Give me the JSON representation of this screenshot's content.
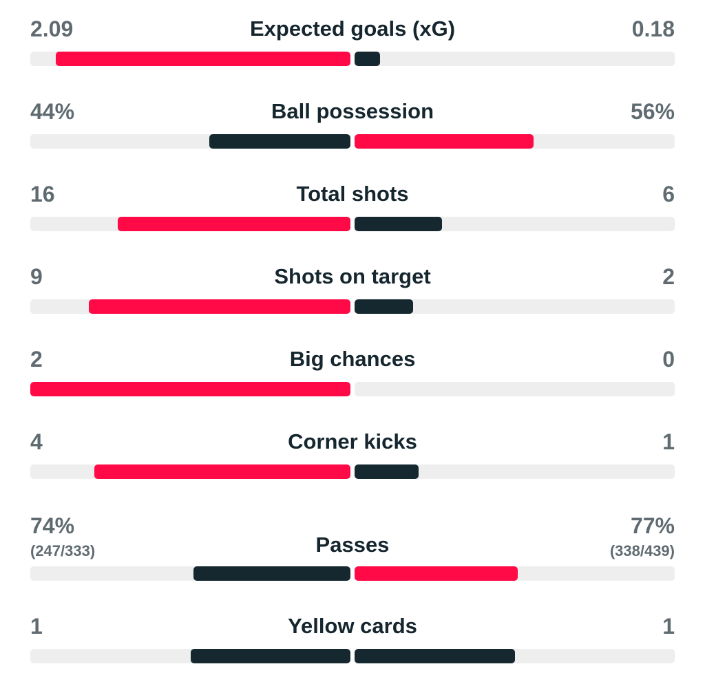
{
  "colors": {
    "home_accent": "#ff0a47",
    "away_dark": "#15282f",
    "track": "#eeeeee"
  },
  "stats": [
    {
      "label": "Expected goals (xG)",
      "home_value": "2.09",
      "away_value": "0.18",
      "home_fill": 0.921,
      "away_fill": 0.079,
      "home_color": "#ff0a47",
      "away_color": "#15282f"
    },
    {
      "label": "Ball possession",
      "home_value": "44%",
      "away_value": "56%",
      "home_fill": 0.44,
      "away_fill": 0.56,
      "home_color": "#15282f",
      "away_color": "#ff0a47"
    },
    {
      "label": "Total shots",
      "home_value": "16",
      "away_value": "6",
      "home_fill": 0.727,
      "away_fill": 0.273,
      "home_color": "#ff0a47",
      "away_color": "#15282f"
    },
    {
      "label": "Shots on target",
      "home_value": "9",
      "away_value": "2",
      "home_fill": 0.818,
      "away_fill": 0.182,
      "home_color": "#ff0a47",
      "away_color": "#15282f"
    },
    {
      "label": "Big chances",
      "home_value": "2",
      "away_value": "0",
      "home_fill": 1.0,
      "away_fill": 0.0,
      "home_color": "#ff0a47",
      "away_color": "#15282f"
    },
    {
      "label": "Corner kicks",
      "home_value": "4",
      "away_value": "1",
      "home_fill": 0.8,
      "away_fill": 0.2,
      "home_color": "#ff0a47",
      "away_color": "#15282f"
    },
    {
      "label": "Passes",
      "home_value": "74%",
      "away_value": "77%",
      "home_detail": "(247/333)",
      "away_detail": "(338/439)",
      "home_fill": 0.49,
      "away_fill": 0.51,
      "home_color": "#15282f",
      "away_color": "#ff0a47"
    },
    {
      "label": "Yellow cards",
      "home_value": "1",
      "away_value": "1",
      "home_fill": 0.5,
      "away_fill": 0.5,
      "home_color": "#15282f",
      "away_color": "#15282f"
    }
  ]
}
